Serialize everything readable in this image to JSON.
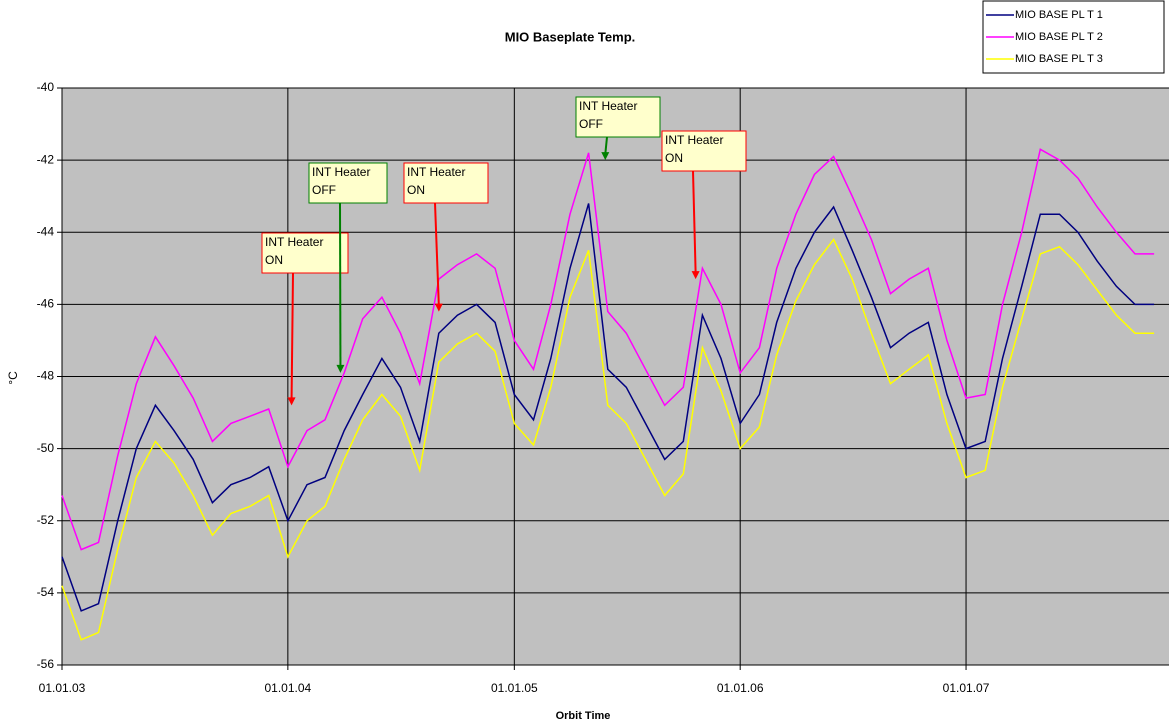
{
  "chart_data": {
    "type": "line",
    "title": "MIO Baseplate Temp.",
    "x_label": "Orbit Time",
    "y_label": "°C",
    "x": [
      "01.01.03",
      "01.02.03",
      "01.03.03",
      "01.04.03",
      "01.05.03",
      "01.06.03",
      "01.07.03",
      "01.08.03",
      "01.09.03",
      "01.10.03",
      "01.11.03",
      "01.12.03",
      "01.01.04",
      "01.02.04",
      "01.03.04",
      "01.04.04",
      "01.05.04",
      "01.06.04",
      "01.07.04",
      "01.08.04",
      "01.09.04",
      "01.10.04",
      "01.11.04",
      "01.12.04",
      "01.01.05",
      "01.02.05",
      "01.03.05",
      "01.04.05",
      "01.05.05",
      "01.06.05",
      "01.07.05",
      "01.08.05",
      "01.09.05",
      "01.10.05",
      "01.11.05",
      "01.12.05",
      "01.01.06",
      "01.02.06",
      "01.03.06",
      "01.04.06",
      "01.05.06",
      "01.06.06",
      "01.07.06",
      "01.08.06",
      "01.09.06",
      "01.10.06",
      "01.11.06",
      "01.12.06",
      "01.01.07",
      "01.02.07",
      "01.03.07",
      "01.04.07",
      "01.05.07",
      "01.06.07",
      "01.07.07",
      "01.08.07",
      "01.09.07",
      "01.10.07",
      "01.11.07"
    ],
    "series": [
      {
        "name": "MIO BASE PL T 1",
        "color": "#000080",
        "values": [
          -53,
          -54.5,
          -54.3,
          -52,
          -50,
          -48.8,
          -49.5,
          -50.3,
          -51.5,
          -51,
          -50.8,
          -50.5,
          -52,
          -51,
          -50.8,
          -49.5,
          -48.5,
          -47.5,
          -48.3,
          -49.8,
          -46.8,
          -46.3,
          -46,
          -46.5,
          -48.5,
          -49.2,
          -47.5,
          -45,
          -43.2,
          -47.8,
          -48.3,
          -49.3,
          -50.3,
          -49.8,
          -46.3,
          -47.5,
          -49.3,
          -48.5,
          -46.5,
          -45,
          -44,
          -43.3,
          -44.5,
          -45.8,
          -47.2,
          -46.8,
          -46.5,
          -48.5,
          -50,
          -49.8,
          -47.5,
          -45.5,
          -43.5,
          -43.5,
          -44,
          -44.8,
          -45.5,
          -46,
          -46
        ]
      },
      {
        "name": "MIO BASE PL T 2",
        "color": "#ff00ff",
        "values": [
          -51.3,
          -52.8,
          -52.6,
          -50.2,
          -48.2,
          -46.9,
          -47.7,
          -48.6,
          -49.8,
          -49.3,
          -49.1,
          -48.9,
          -50.5,
          -49.5,
          -49.2,
          -47.9,
          -46.4,
          -45.8,
          -46.8,
          -48.2,
          -45.3,
          -44.9,
          -44.6,
          -45,
          -47,
          -47.8,
          -46,
          -43.5,
          -41.8,
          -46.2,
          -46.8,
          -47.8,
          -48.8,
          -48.3,
          -45,
          -46,
          -47.9,
          -47.2,
          -45,
          -43.5,
          -42.4,
          -41.9,
          -43,
          -44.2,
          -45.7,
          -45.3,
          -45,
          -47,
          -48.6,
          -48.5,
          -46,
          -44,
          -41.7,
          -42,
          -42.5,
          -43.3,
          -44,
          -44.6,
          -44.6
        ]
      },
      {
        "name": "MIO BASE PL T 3",
        "color": "#ffff00",
        "values": [
          -53.8,
          -55.3,
          -55.1,
          -52.8,
          -50.8,
          -49.8,
          -50.4,
          -51.3,
          -52.4,
          -51.8,
          -51.6,
          -51.3,
          -53,
          -52,
          -51.6,
          -50.3,
          -49.2,
          -48.5,
          -49.1,
          -50.6,
          -47.6,
          -47.1,
          -46.8,
          -47.3,
          -49.3,
          -49.9,
          -48.3,
          -45.8,
          -44.5,
          -48.8,
          -49.3,
          -50.3,
          -51.3,
          -50.7,
          -47.2,
          -48.4,
          -50,
          -49.4,
          -47.4,
          -45.9,
          -44.9,
          -44.2,
          -45.3,
          -46.8,
          -48.2,
          -47.8,
          -47.4,
          -49.3,
          -50.8,
          -50.6,
          -48.3,
          -46.4,
          -44.6,
          -44.4,
          -44.9,
          -45.6,
          -46.3,
          -46.8,
          -46.8
        ]
      }
    ],
    "xlim": [
      "01.01.03",
      "25.11.07"
    ],
    "xticks": [
      "01.01.03",
      "01.01.04",
      "01.01.05",
      "01.01.06",
      "01.01.07"
    ],
    "ylim": [
      -56,
      -40
    ],
    "yticks": [
      -40,
      -42,
      -44,
      -46,
      -48,
      -50,
      -52,
      -54,
      -56
    ],
    "grid": true,
    "legend": "top-right",
    "annotations": [
      {
        "text": [
          "INT Heater",
          "ON"
        ],
        "x": "07.01.04",
        "y": -48.8,
        "color": "#ff0000"
      },
      {
        "text": [
          "INT Heater",
          "OFF"
        ],
        "x": "26.03.04",
        "y": -47.9,
        "color": "#008000"
      },
      {
        "text": [
          "INT Heater",
          "ON"
        ],
        "x": "01.09.04",
        "y": -46.2,
        "color": "#ff0000"
      },
      {
        "text": [
          "INT Heater",
          "OFF"
        ],
        "x": "28.05.05",
        "y": -42.0,
        "color": "#008000"
      },
      {
        "text": [
          "INT Heater",
          "ON"
        ],
        "x": "21.10.05",
        "y": -45.3,
        "color": "#ff0000"
      }
    ]
  }
}
